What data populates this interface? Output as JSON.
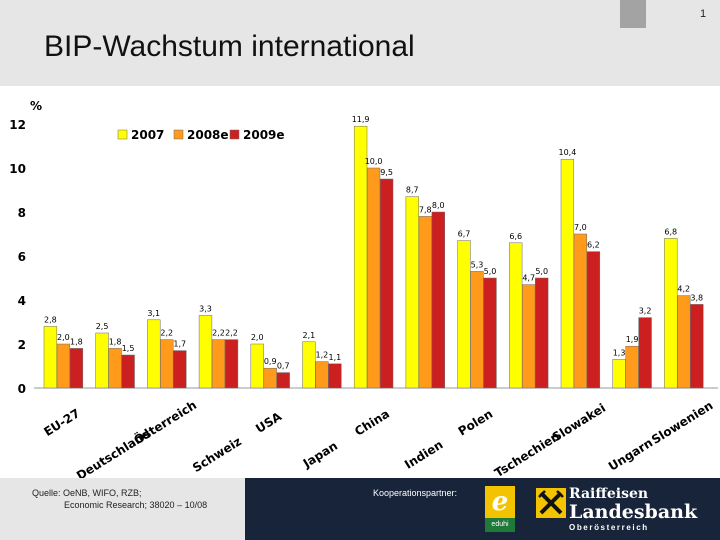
{
  "slide": {
    "title": "BIP-Wachstum international",
    "page_number": "1"
  },
  "colors": {
    "series_2007": "#ffff00",
    "series_2008e": "#ff9a1a",
    "series_2009e": "#cc1f1f",
    "header_bg": "#e6e6e6",
    "footer_dark": "#17243a"
  },
  "chart_data": {
    "type": "bar",
    "ylabel": "%",
    "ylim": [
      0,
      12
    ],
    "yticks": [
      0,
      2,
      4,
      6,
      8,
      10,
      12
    ],
    "grid": false,
    "legend_position": "top-left",
    "categories": [
      "EU-27",
      "Deutschland",
      "Österreich",
      "Schweiz",
      "USA",
      "Japan",
      "China",
      "Indien",
      "Polen",
      "Tschechien",
      "Slowakei",
      "Ungarn",
      "Slowenien"
    ],
    "series": [
      {
        "name": "2007",
        "values": [
          2.8,
          2.5,
          3.1,
          3.3,
          2.0,
          2.1,
          11.9,
          8.7,
          6.7,
          6.6,
          10.4,
          1.3,
          6.8
        ]
      },
      {
        "name": "2008e",
        "values": [
          2.0,
          1.8,
          2.2,
          2.2,
          0.9,
          1.2,
          10.0,
          7.8,
          5.3,
          4.7,
          7.0,
          1.9,
          4.2
        ]
      },
      {
        "name": "2009e",
        "values": [
          1.8,
          1.5,
          1.7,
          2.2,
          0.7,
          1.1,
          9.5,
          8.0,
          5.0,
          5.0,
          6.2,
          3.2,
          3.8
        ]
      }
    ],
    "value_labels": [
      [
        "2,8",
        "2,5",
        "3,1",
        "3,3",
        "2,0",
        "2,1",
        "11,9",
        "8,7",
        "6,7",
        "6,6",
        "10,4",
        "1,3",
        "6,8"
      ],
      [
        "2,0",
        "1,8",
        "2,2",
        "2,2",
        "0,9",
        "1,2",
        "10,0",
        "7,8",
        "5,3",
        "4,7",
        "7,0",
        "1,9",
        "4,2"
      ],
      [
        "1,8",
        "1,5",
        "1,7",
        "2,2",
        "0,7",
        "1,1",
        "9,5",
        "8,0",
        "5,0",
        "5,0",
        "6,2",
        "3,2",
        "3,8"
      ]
    ]
  },
  "footer": {
    "source_line1": "Quelle: OeNB, WIFO, RZB;",
    "source_line2": "Economic Research; 38020 – 10/08",
    "partner_label": "Kooperationspartner:",
    "eduhi_letter": "e",
    "eduhi_name": "eduhi",
    "rlb_line1": "Raiffeisen",
    "rlb_line2": "Landesbank",
    "rlb_line3": "Oberösterreich"
  }
}
